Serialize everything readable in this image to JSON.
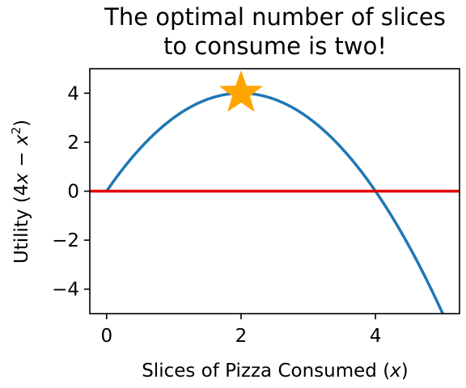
{
  "chart_data": {
    "type": "line",
    "title_lines": [
      "The optimal number of slices",
      "to consume is two!"
    ],
    "xlabel": {
      "text": "Slices of Pizza Consumed (",
      "var": "x",
      "close": ")"
    },
    "ylabel": {
      "text": "Utility (4",
      "var1": "x",
      "mid": " − ",
      "var2": "x",
      "sup": "2",
      "close": ")"
    },
    "xlim": [
      -0.25,
      5.25
    ],
    "ylim": [
      -5,
      5
    ],
    "xticks": [
      0,
      2,
      4
    ],
    "yticks": [
      4,
      2,
      0,
      -2,
      -4
    ],
    "ytick_labels": [
      "4",
      "2",
      "0",
      "−2",
      "−4"
    ],
    "series": [
      {
        "function": "4x - x^2",
        "x_range": [
          0,
          5
        ],
        "color": "#1f77b4",
        "x": [
          0,
          0.5,
          1,
          1.5,
          2,
          2.5,
          3,
          3.5,
          4,
          4.5,
          5
        ],
        "y": [
          0,
          1.75,
          3,
          3.75,
          4,
          3.75,
          3,
          1.75,
          0,
          -2.25,
          -5
        ]
      }
    ],
    "hlines": [
      {
        "y": 0,
        "color": "#e50000"
      }
    ],
    "markers": [
      {
        "x": 2,
        "y": 4,
        "shape": "star",
        "color": "#ffa500"
      }
    ],
    "grid": false,
    "legend": "none"
  }
}
